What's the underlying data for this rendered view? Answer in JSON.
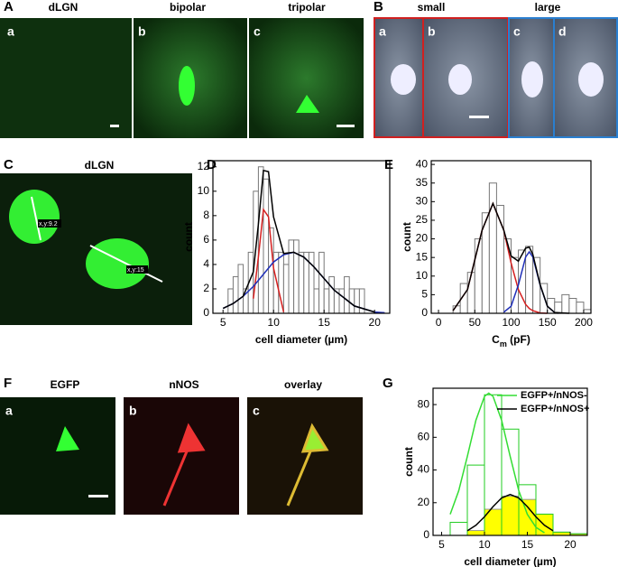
{
  "panel_A": {
    "label": "A",
    "titles": [
      "dLGN",
      "bipolar",
      "tripolar"
    ],
    "letters": [
      "a",
      "b",
      "c"
    ]
  },
  "panel_B": {
    "label": "B",
    "titles": [
      "small",
      "large"
    ],
    "letters": [
      "a",
      "b",
      "c",
      "d"
    ]
  },
  "panel_C": {
    "label": "C",
    "title": "dLGN",
    "annotations": [
      "x,y:9.2",
      "x,y:15"
    ]
  },
  "panel_D": {
    "label": "D"
  },
  "panel_E": {
    "label": "E"
  },
  "panel_F": {
    "label": "F",
    "titles": [
      "EGFP",
      "nNOS",
      "overlay"
    ],
    "letters": [
      "a",
      "b",
      "c"
    ]
  },
  "panel_G": {
    "label": "G"
  },
  "chart_data": [
    {
      "type": "histogram",
      "xlabel": "cell diameter (µm)",
      "ylabel": "count",
      "xlim": [
        4,
        21.5
      ],
      "ylim": [
        0,
        12.5
      ],
      "xticks": [
        5,
        10,
        15,
        20
      ],
      "yticks": [
        0,
        2,
        4,
        6,
        8,
        10,
        12
      ],
      "bins": [
        5.5,
        6,
        6.5,
        7,
        7.5,
        8,
        8.5,
        9,
        9.5,
        10,
        10.5,
        11,
        11.5,
        12,
        12.5,
        13,
        13.5,
        14,
        14.5,
        15,
        15.5,
        16,
        16.5,
        17,
        17.5,
        18,
        18.5,
        19
      ],
      "histograms": [
        {
          "color": "#777777",
          "fill": "#ffffff",
          "values": [
            2,
            3,
            4,
            2,
            5,
            10,
            12,
            11,
            7,
            5,
            5,
            4,
            6,
            6,
            5,
            5,
            5,
            2,
            5,
            2,
            3,
            2,
            2,
            3,
            2,
            2,
            2
          ]
        }
      ],
      "fits": [
        {
          "color": "#d62020",
          "x": [
            8,
            8.5,
            9,
            9.5,
            10,
            11
          ],
          "values": [
            1.2,
            4.6,
            8.5,
            7.9,
            3.7,
            0.1
          ]
        },
        {
          "color": "#1f2fb8",
          "x": [
            5,
            6,
            7,
            8,
            8.5,
            9,
            9.5,
            10,
            11,
            12,
            13,
            14,
            16,
            18,
            20,
            21
          ],
          "values": [
            0.4,
            0.8,
            1.4,
            2.2,
            2.7,
            3.2,
            3.7,
            4.2,
            4.8,
            5,
            4.6,
            3.8,
            1.9,
            0.6,
            0.1,
            0.05
          ]
        },
        {
          "color": "#000000",
          "x": [
            5,
            6,
            7,
            8,
            8.5,
            9,
            9.5,
            10,
            11,
            12,
            13,
            14,
            16,
            18,
            20
          ],
          "values": [
            0.4,
            0.8,
            1.4,
            3.4,
            7.3,
            11.7,
            11.6,
            7.9,
            4.9,
            5,
            4.6,
            3.8,
            1.9,
            0.6,
            0.1
          ]
        }
      ]
    },
    {
      "type": "histogram",
      "xlabel": {
        "main": "C",
        "sub": "m",
        "unit": " (pF)"
      },
      "ylabel": "count",
      "xlim": [
        -10,
        210
      ],
      "ylim": [
        0,
        41
      ],
      "xticks": [
        0,
        50,
        100,
        150,
        200
      ],
      "yticks": [
        0,
        5,
        10,
        15,
        20,
        25,
        30,
        35,
        40
      ],
      "bins": [
        20,
        30,
        40,
        50,
        60,
        70,
        80,
        90,
        100,
        110,
        120,
        130,
        140,
        150,
        160,
        170,
        180,
        190,
        200,
        210
      ],
      "histograms": [
        {
          "color": "#777777",
          "fill": "#ffffff",
          "values": [
            2,
            8,
            11,
            20,
            27,
            35,
            29,
            20,
            15,
            17,
            18,
            15,
            8,
            4,
            3,
            5,
            4,
            3,
            1
          ]
        }
      ],
      "fits": [
        {
          "color": "#d62020",
          "x": [
            20,
            40,
            60,
            75,
            90,
            100,
            110,
            120,
            125,
            130,
            140,
            150
          ],
          "values": [
            0.7,
            6.4,
            22.3,
            29.5,
            22.3,
            13.5,
            6.4,
            2.4,
            1.3,
            0.7,
            0.1,
            0
          ]
        },
        {
          "color": "#1f2fb8",
          "x": [
            90,
            100,
            110,
            120,
            125,
            130,
            140,
            150,
            160,
            165
          ],
          "values": [
            0.3,
            1.9,
            7.6,
            15.1,
            16.5,
            15.1,
            7.6,
            1.9,
            0.2,
            0
          ]
        },
        {
          "color": "#000000",
          "x": [
            20,
            40,
            60,
            75,
            90,
            100,
            110,
            120,
            125,
            130,
            140,
            150,
            160,
            180
          ],
          "values": [
            0.7,
            6.4,
            22.3,
            29.5,
            22.3,
            15.4,
            14,
            17.5,
            17.8,
            15.8,
            7.7,
            1.9,
            0.2,
            0
          ]
        }
      ]
    },
    {
      "type": "histogram",
      "xlabel": "cell diameter (µm)",
      "ylabel": "count",
      "xlim": [
        4,
        22
      ],
      "ylim": [
        0,
        90
      ],
      "xticks": [
        5,
        10,
        15,
        20
      ],
      "yticks": [
        0,
        20,
        40,
        60,
        80
      ],
      "bins": [
        6,
        8,
        10,
        12,
        14,
        16,
        18,
        20,
        22
      ],
      "histograms": [
        {
          "color": "#999999",
          "fill": "#ffff00",
          "values": [
            0,
            3,
            16,
            24,
            22,
            13,
            2,
            1
          ]
        },
        {
          "color": "#22cc22",
          "fill": "none",
          "values": [
            8,
            43,
            86,
            65,
            31,
            13,
            2,
            1
          ]
        }
      ],
      "fits": [
        {
          "name": "EGFP+/nNOS-",
          "color": "#33dd33",
          "x": [
            6,
            7,
            8,
            9,
            10,
            10.5,
            11,
            12,
            13,
            14,
            15,
            16,
            17
          ],
          "values": [
            12.9,
            27.4,
            48.3,
            70.4,
            85,
            87,
            85,
            70.4,
            48.3,
            27.4,
            12.9,
            5,
            1.6
          ]
        },
        {
          "name": "EGFP+/nNOS+",
          "color": "#000000",
          "x": [
            8,
            9,
            10,
            11,
            12,
            13,
            14,
            15,
            16,
            17,
            18
          ],
          "values": [
            2.8,
            6.2,
            11.4,
            17.6,
            22.9,
            25,
            22.9,
            17.6,
            11.4,
            6.2,
            2.8
          ]
        }
      ],
      "legend": "upper right"
    }
  ]
}
